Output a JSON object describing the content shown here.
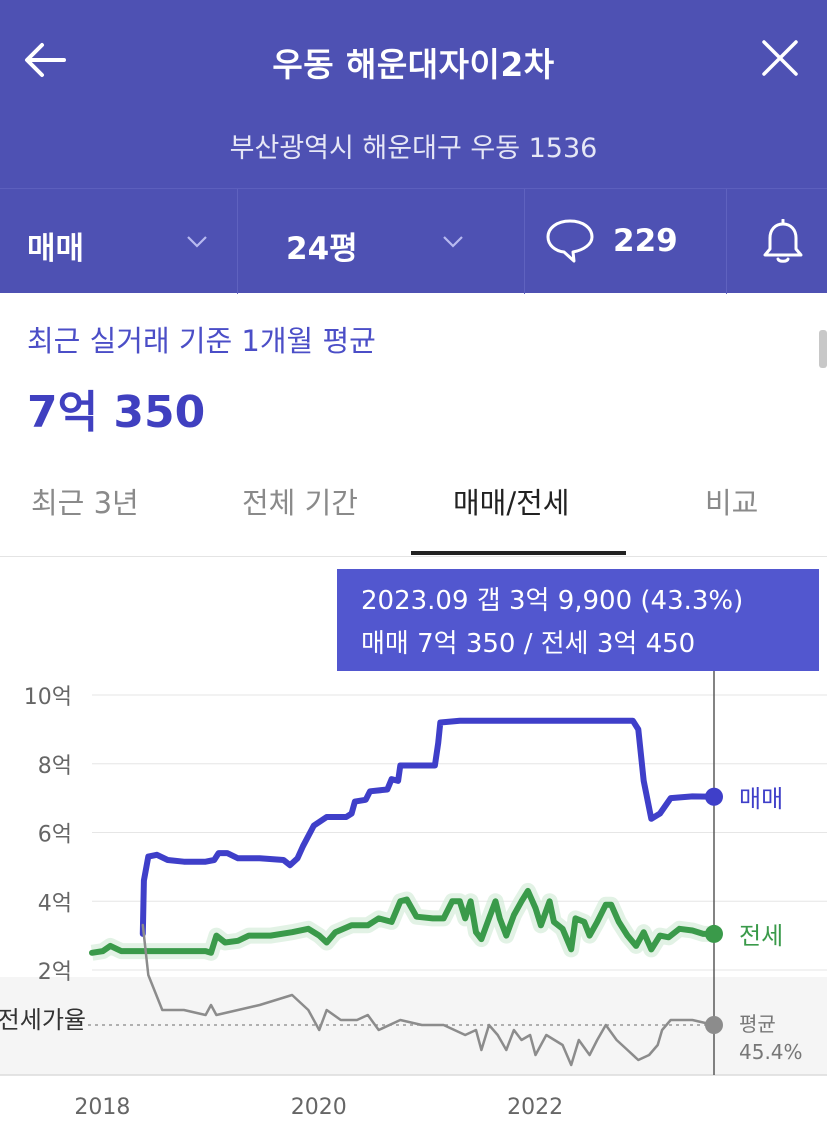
{
  "header": {
    "title": "우동 해운대자이2차",
    "address": "부산광역시 해운대구 우동 1536",
    "trade_type": "매매",
    "size": "24평",
    "comment_count": "229"
  },
  "summary": {
    "label": "최근 실거래 기준 1개월 평균",
    "value": "7억 350"
  },
  "tabs": [
    {
      "label": "최근 3년",
      "active": false
    },
    {
      "label": "전체 기간",
      "active": false
    },
    {
      "label": "매매/전세",
      "active": true
    },
    {
      "label": "비교",
      "active": false
    }
  ],
  "tooltip": {
    "line1": "2023.09  갭 3억 9,900 (43.3%)",
    "line2": "매매 7억 350 / 전세 3억 450"
  },
  "colors": {
    "header_bg": "#4e51b3",
    "sale": "#3f3fc9",
    "jeonse": "#3a9a4a",
    "ratio": "#8c8c8c",
    "tooltip_bg": "#5257cf"
  },
  "chart_data": {
    "type": "line",
    "y_ticks": [
      "10억",
      "8억",
      "6억",
      "4억",
      "2억"
    ],
    "y_tick_values": [
      10,
      8,
      6,
      4,
      2
    ],
    "ylim": [
      2,
      10
    ],
    "x_ticks": [
      "2018",
      "2020",
      "2022"
    ],
    "x_tick_values": [
      2018,
      2020,
      2022
    ],
    "xlim": [
      2017.95,
      2023.7
    ],
    "grid": true,
    "series": [
      {
        "name": "매매",
        "color": "#3f3fc9",
        "points": [
          [
            2018.42,
            3.05
          ],
          [
            2018.43,
            4.6
          ],
          [
            2018.47,
            5.3
          ],
          [
            2018.55,
            5.35
          ],
          [
            2018.65,
            5.2
          ],
          [
            2018.8,
            5.15
          ],
          [
            2019.0,
            5.15
          ],
          [
            2019.08,
            5.2
          ],
          [
            2019.12,
            5.4
          ],
          [
            2019.2,
            5.4
          ],
          [
            2019.3,
            5.25
          ],
          [
            2019.5,
            5.25
          ],
          [
            2019.72,
            5.2
          ],
          [
            2019.78,
            5.05
          ],
          [
            2019.85,
            5.25
          ],
          [
            2019.9,
            5.6
          ],
          [
            2020.0,
            6.2
          ],
          [
            2020.12,
            6.45
          ],
          [
            2020.3,
            6.45
          ],
          [
            2020.35,
            6.55
          ],
          [
            2020.38,
            6.9
          ],
          [
            2020.48,
            6.95
          ],
          [
            2020.52,
            7.2
          ],
          [
            2020.68,
            7.25
          ],
          [
            2020.72,
            7.55
          ],
          [
            2020.78,
            7.5
          ],
          [
            2020.8,
            7.95
          ],
          [
            2021.0,
            7.95
          ],
          [
            2021.12,
            7.95
          ],
          [
            2021.15,
            8.6
          ],
          [
            2021.17,
            9.2
          ],
          [
            2021.35,
            9.25
          ],
          [
            2021.6,
            9.25
          ],
          [
            2022.0,
            9.25
          ],
          [
            2022.5,
            9.25
          ],
          [
            2022.95,
            9.25
          ],
          [
            2023.0,
            9.0
          ],
          [
            2023.05,
            7.5
          ],
          [
            2023.12,
            6.4
          ],
          [
            2023.2,
            6.55
          ],
          [
            2023.3,
            7.0
          ],
          [
            2023.5,
            7.05
          ],
          [
            2023.7,
            7.04
          ]
        ]
      },
      {
        "name": "전세",
        "color": "#3a9a4a",
        "points": [
          [
            2017.95,
            2.5
          ],
          [
            2018.05,
            2.55
          ],
          [
            2018.12,
            2.7
          ],
          [
            2018.22,
            2.55
          ],
          [
            2018.4,
            2.55
          ],
          [
            2018.6,
            2.55
          ],
          [
            2018.8,
            2.55
          ],
          [
            2019.0,
            2.55
          ],
          [
            2019.05,
            2.5
          ],
          [
            2019.1,
            3.0
          ],
          [
            2019.18,
            2.8
          ],
          [
            2019.3,
            2.85
          ],
          [
            2019.4,
            3.0
          ],
          [
            2019.6,
            3.0
          ],
          [
            2019.8,
            3.1
          ],
          [
            2019.95,
            3.2
          ],
          [
            2020.05,
            3.0
          ],
          [
            2020.12,
            2.8
          ],
          [
            2020.2,
            3.1
          ],
          [
            2020.35,
            3.3
          ],
          [
            2020.5,
            3.3
          ],
          [
            2020.6,
            3.5
          ],
          [
            2020.72,
            3.4
          ],
          [
            2020.8,
            4.0
          ],
          [
            2020.86,
            4.05
          ],
          [
            2020.95,
            3.55
          ],
          [
            2021.1,
            3.5
          ],
          [
            2021.2,
            3.5
          ],
          [
            2021.28,
            4.0
          ],
          [
            2021.35,
            4.0
          ],
          [
            2021.4,
            3.5
          ],
          [
            2021.45,
            4.0
          ],
          [
            2021.5,
            3.1
          ],
          [
            2021.55,
            2.9
          ],
          [
            2021.62,
            3.5
          ],
          [
            2021.68,
            4.0
          ],
          [
            2021.72,
            3.5
          ],
          [
            2021.78,
            3.0
          ],
          [
            2021.85,
            3.6
          ],
          [
            2021.92,
            4.0
          ],
          [
            2021.98,
            4.3
          ],
          [
            2022.05,
            3.8
          ],
          [
            2022.1,
            3.3
          ],
          [
            2022.18,
            4.0
          ],
          [
            2022.22,
            3.4
          ],
          [
            2022.3,
            3.2
          ],
          [
            2022.38,
            2.6
          ],
          [
            2022.42,
            3.5
          ],
          [
            2022.5,
            3.4
          ],
          [
            2022.55,
            3.0
          ],
          [
            2022.62,
            3.4
          ],
          [
            2022.7,
            3.9
          ],
          [
            2022.75,
            3.9
          ],
          [
            2022.82,
            3.4
          ],
          [
            2022.9,
            3.0
          ],
          [
            2022.98,
            2.7
          ],
          [
            2023.05,
            3.1
          ],
          [
            2023.12,
            2.6
          ],
          [
            2023.2,
            3.0
          ],
          [
            2023.28,
            2.95
          ],
          [
            2023.38,
            3.2
          ],
          [
            2023.5,
            3.15
          ],
          [
            2023.6,
            3.05
          ],
          [
            2023.7,
            3.05
          ]
        ]
      },
      {
        "name": "전세가율",
        "color": "#8c8c8c",
        "points": [
          [
            2018.42,
            1.55
          ],
          [
            2018.47,
            1.05
          ],
          [
            2018.6,
            0.7
          ],
          [
            2018.8,
            0.7
          ],
          [
            2019.0,
            0.65
          ],
          [
            2019.05,
            0.75
          ],
          [
            2019.1,
            0.65
          ],
          [
            2019.3,
            0.7
          ],
          [
            2019.5,
            0.75
          ],
          [
            2019.8,
            0.85
          ],
          [
            2019.95,
            0.7
          ],
          [
            2020.05,
            0.5
          ],
          [
            2020.12,
            0.7
          ],
          [
            2020.25,
            0.6
          ],
          [
            2020.4,
            0.6
          ],
          [
            2020.5,
            0.65
          ],
          [
            2020.6,
            0.5
          ],
          [
            2020.8,
            0.6
          ],
          [
            2021.0,
            0.55
          ],
          [
            2021.2,
            0.55
          ],
          [
            2021.4,
            0.45
          ],
          [
            2021.5,
            0.5
          ],
          [
            2021.55,
            0.3
          ],
          [
            2021.62,
            0.55
          ],
          [
            2021.7,
            0.45
          ],
          [
            2021.78,
            0.3
          ],
          [
            2021.85,
            0.5
          ],
          [
            2021.92,
            0.4
          ],
          [
            2022.0,
            0.45
          ],
          [
            2022.05,
            0.25
          ],
          [
            2022.15,
            0.45
          ],
          [
            2022.3,
            0.35
          ],
          [
            2022.38,
            0.15
          ],
          [
            2022.45,
            0.4
          ],
          [
            2022.55,
            0.25
          ],
          [
            2022.62,
            0.4
          ],
          [
            2022.7,
            0.55
          ],
          [
            2022.8,
            0.4
          ],
          [
            2022.9,
            0.3
          ],
          [
            2023.0,
            0.2
          ],
          [
            2023.1,
            0.25
          ],
          [
            2023.18,
            0.35
          ],
          [
            2023.22,
            0.5
          ],
          [
            2023.3,
            0.6
          ],
          [
            2023.5,
            0.6
          ],
          [
            2023.7,
            0.55
          ]
        ]
      }
    ],
    "ratio_average": {
      "label": "평균",
      "value": "45.4%",
      "level": 0.55
    },
    "end_labels": {
      "sale": "매매",
      "jeonse": "전세",
      "ratio": "전세가율"
    },
    "highlight_x": 2023.7
  }
}
